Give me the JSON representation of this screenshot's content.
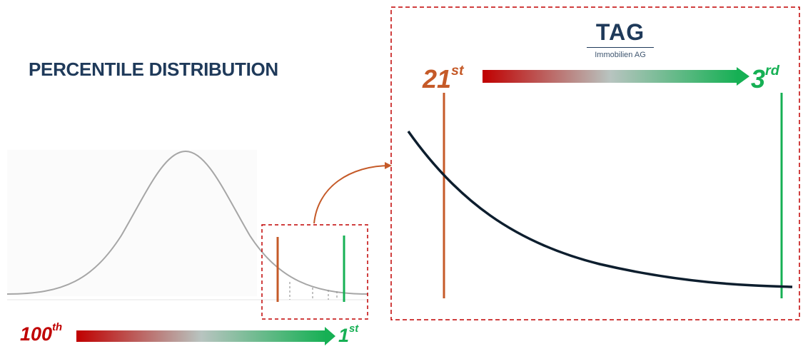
{
  "title": "PERCENTILE DISTRIBUTION",
  "logo": {
    "name": "TAG",
    "subtitle": "Immobilien AG"
  },
  "bottom_scale": {
    "left_rank": "100",
    "left_suffix": "th",
    "right_rank": "1",
    "right_suffix": "st"
  },
  "zoom_scale": {
    "left_rank": "21",
    "left_suffix": "st",
    "right_rank": "3",
    "right_suffix": "rd"
  },
  "colors": {
    "title": "#1f3a5a",
    "worst": "#c00000",
    "middle": "#b8c4c0",
    "best": "#16b054",
    "marker_orange": "#c55a28",
    "frame_dash": "#c00000",
    "zoom_curve": "#0d1e2e",
    "bell_curve": "#a6a6a6"
  }
}
